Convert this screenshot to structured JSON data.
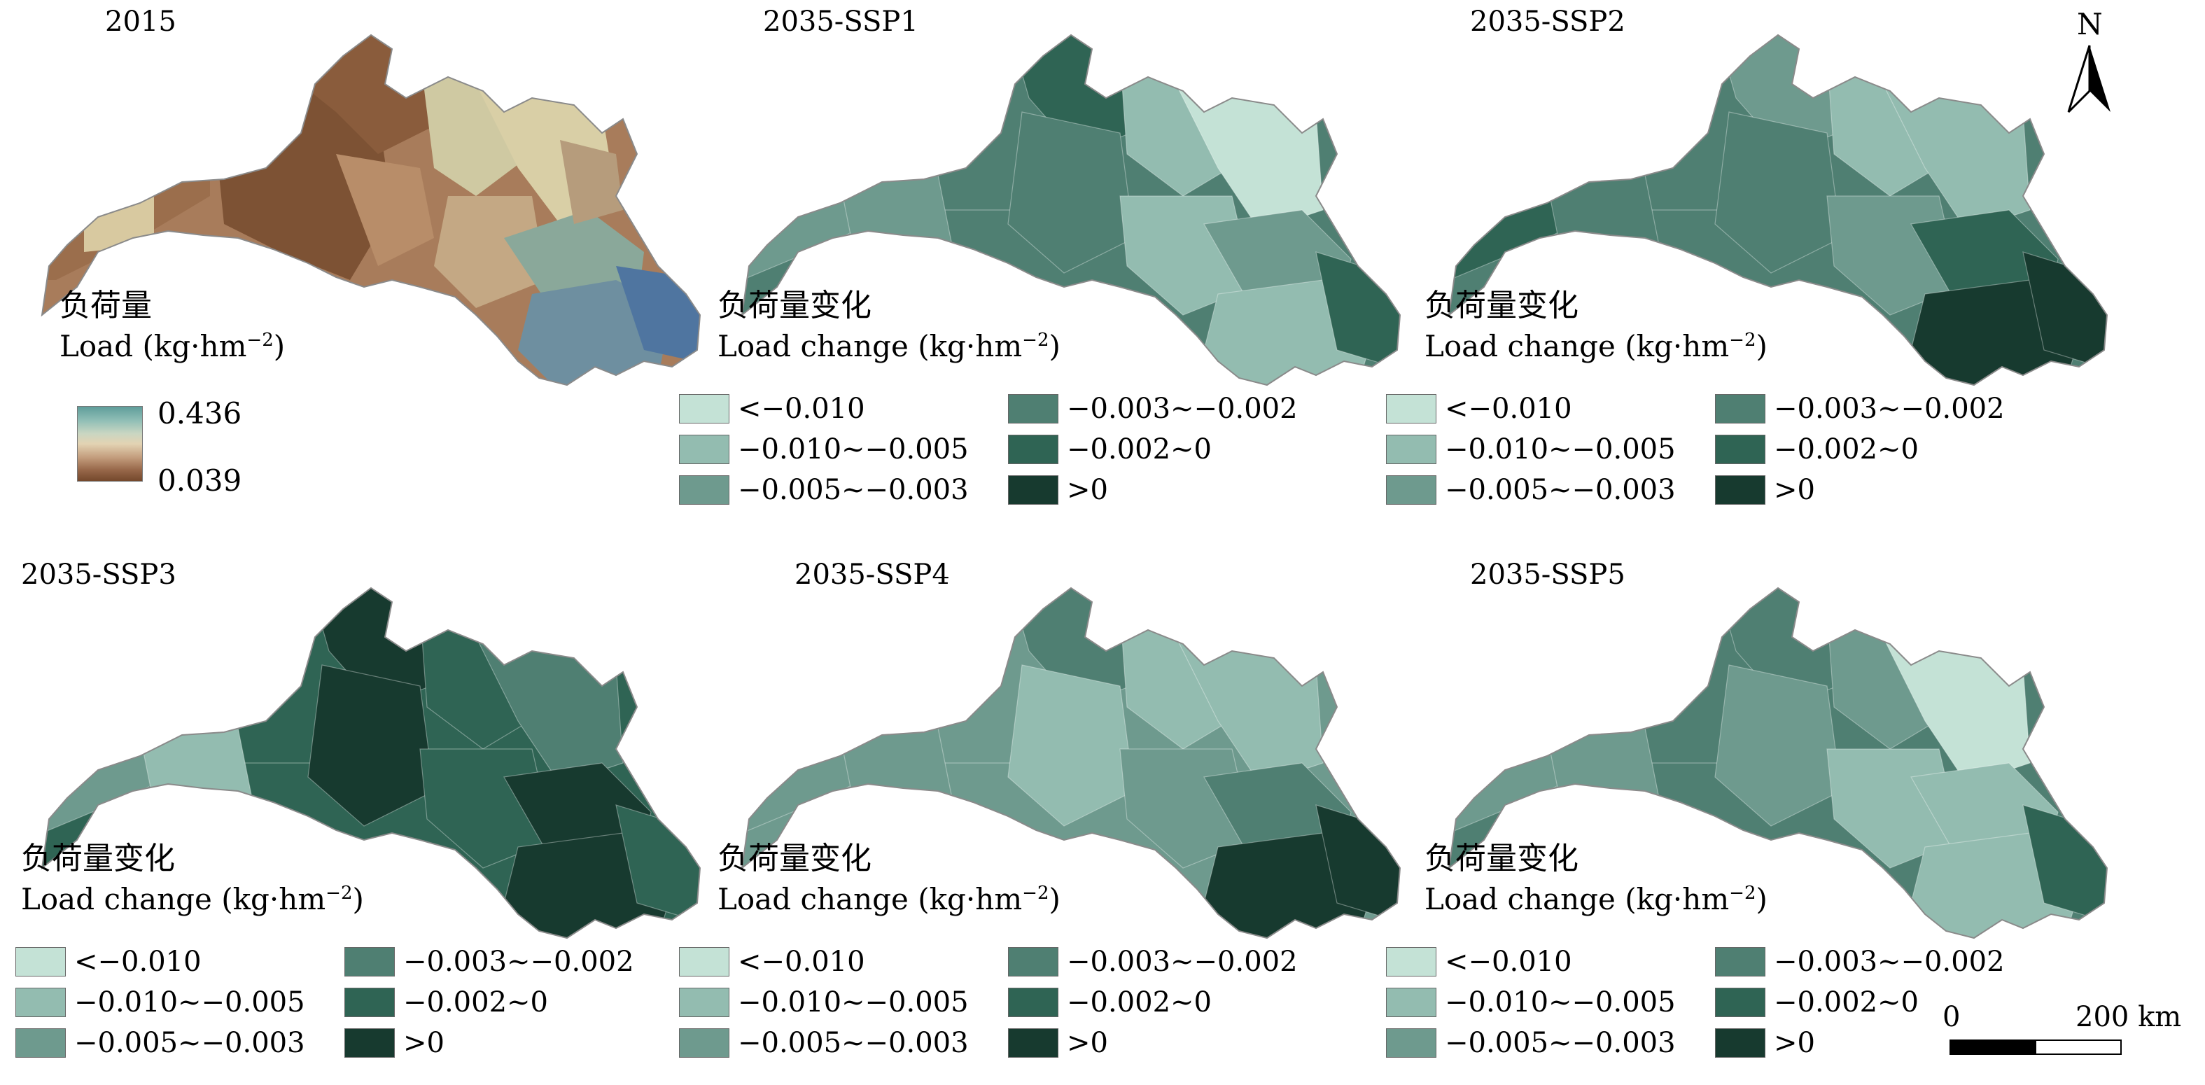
{
  "panels": [
    {
      "title": "2015",
      "legend_cn": "负荷量",
      "legend_en": "Load (kg·hm",
      "legend_sup": "−2",
      "legend_close": ")"
    },
    {
      "title": "2035-SSP1",
      "legend_cn": "负荷量变化",
      "legend_en": "Load change (kg·hm",
      "legend_sup": "−2",
      "legend_close": ")"
    },
    {
      "title": "2035-SSP2",
      "legend_cn": "负荷量变化",
      "legend_en": "Load change (kg·hm",
      "legend_sup": "−2",
      "legend_close": ")"
    },
    {
      "title": "2035-SSP3",
      "legend_cn": "负荷量变化",
      "legend_en": "Load change (kg·hm",
      "legend_sup": "−2",
      "legend_close": ")"
    },
    {
      "title": "2035-SSP4",
      "legend_cn": "负荷量变化",
      "legend_en": "Load change (kg·hm",
      "legend_sup": "−2",
      "legend_close": ")"
    },
    {
      "title": "2035-SSP5",
      "legend_cn": "负荷量变化",
      "legend_en": "Load change (kg·hm",
      "legend_sup": "−2",
      "legend_close": ")"
    }
  ],
  "ramp": {
    "max_label": "0.436",
    "min_label": "0.039"
  },
  "change_classes": [
    {
      "label": "<−0.010",
      "color": "#c4e2d6"
    },
    {
      "label": "−0.010~−0.005",
      "color": "#93bcb0"
    },
    {
      "label": "−0.005~−0.003",
      "color": "#6e9a8e"
    },
    {
      "label": "−0.003~−0.002",
      "color": "#4f7f72"
    },
    {
      "label": "−0.002~0",
      "color": "#2f6454"
    },
    {
      "label": ">0",
      "color": "#173a2f"
    }
  ],
  "north_label": "N",
  "scale": {
    "zero": "0",
    "end": "200 km"
  }
}
